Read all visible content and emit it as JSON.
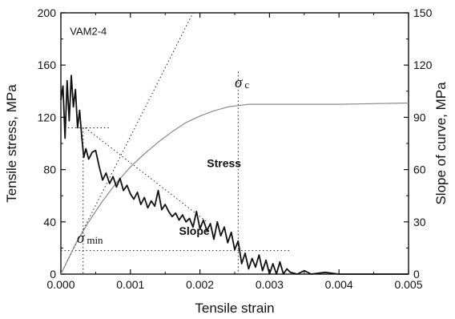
{
  "chart_data": {
    "type": "line",
    "sample_label": "VAM2-4",
    "xlabel": "Tensile strain",
    "ylabel_left": "Tensile stress, MPa",
    "ylabel_right": "Slope of curve, MPa",
    "xlim": [
      0.0,
      0.005
    ],
    "ylim_left": [
      0,
      200
    ],
    "ylim_right": [
      0,
      150
    ],
    "x_ticks": [
      "0.000",
      "0.001",
      "0.002",
      "0.003",
      "0.004",
      "0.005"
    ],
    "y_ticks_left": [
      "0",
      "40",
      "80",
      "120",
      "160",
      "200"
    ],
    "y_ticks_right": [
      "0",
      "30",
      "60",
      "90",
      "120",
      "150"
    ],
    "series": [
      {
        "name": "Stress",
        "axis": "left",
        "style": "solid-thin",
        "color": "#8a8a8a",
        "x": [
          0.0,
          0.0002,
          0.0004,
          0.0006,
          0.0008,
          0.001,
          0.0012,
          0.0014,
          0.0016,
          0.0018,
          0.002,
          0.0022,
          0.0024,
          0.00255,
          0.0027,
          0.003,
          0.0035,
          0.004,
          0.0045,
          0.005
        ],
        "y": [
          0,
          22,
          40,
          56,
          70,
          82,
          92,
          101,
          109,
          116,
          121,
          125,
          128,
          129,
          130,
          130,
          130,
          130,
          130.5,
          131
        ]
      },
      {
        "name": "Slope",
        "axis": "right",
        "style": "solid-thick",
        "color": "#111111",
        "x": [
          0.0,
          3e-05,
          6e-05,
          9e-05,
          0.00012,
          0.00015,
          0.00018,
          0.00021,
          0.00024,
          0.00027,
          0.0003,
          0.00033,
          0.00036,
          0.0004,
          0.00045,
          0.0005,
          0.00055,
          0.0006,
          0.00065,
          0.0007,
          0.00075,
          0.0008,
          0.00085,
          0.0009,
          0.00095,
          0.001,
          0.00105,
          0.0011,
          0.00115,
          0.0012,
          0.00125,
          0.0013,
          0.00135,
          0.0014,
          0.00145,
          0.0015,
          0.00155,
          0.0016,
          0.00165,
          0.0017,
          0.00175,
          0.0018,
          0.00185,
          0.0019,
          0.00195,
          0.002,
          0.00205,
          0.0021,
          0.00215,
          0.0022,
          0.00225,
          0.0023,
          0.00235,
          0.0024,
          0.00245,
          0.0025,
          0.00255,
          0.0026,
          0.00265,
          0.0027,
          0.00275,
          0.0028,
          0.00285,
          0.0029,
          0.00295,
          0.003,
          0.00305,
          0.0031,
          0.00315,
          0.0032,
          0.00325,
          0.0033,
          0.0034,
          0.0035,
          0.0036,
          0.0038,
          0.004,
          0.0042,
          0.0044,
          0.0046,
          0.0048,
          0.005
        ],
        "y": [
          100,
          108,
          78,
          111,
          88,
          114,
          96,
          106,
          84,
          94,
          79,
          67,
          72,
          66,
          70,
          71,
          62,
          54,
          58,
          52,
          56,
          50,
          55,
          48,
          51,
          46,
          43,
          47,
          40,
          44,
          38,
          42,
          39,
          48,
          37,
          40,
          36,
          33,
          35,
          31,
          34,
          30,
          32,
          27,
          36,
          26,
          31,
          25,
          29,
          20,
          30,
          22,
          27,
          18,
          24,
          14,
          19,
          6,
          12,
          3,
          9,
          4,
          11,
          2,
          8,
          0,
          6,
          -1,
          7,
          0,
          3,
          1,
          0,
          2,
          0,
          1,
          0,
          -1,
          0,
          0,
          0,
          0
        ]
      }
    ],
    "annotations": [
      {
        "text": "Stress",
        "x": 0.0021,
        "y_left": 82
      },
      {
        "text": "Slope",
        "x": 0.0017,
        "y_left": 30
      },
      {
        "symbol": "σ",
        "subscript": "c",
        "x": 0.0025,
        "y_left": 143
      },
      {
        "symbol": "σ",
        "subscript": "min",
        "x": 0.00023,
        "y_left": 24
      }
    ],
    "reference_lines": {
      "sigma_c_strain": 0.00255,
      "sigma_min_strain": 0.00032,
      "stress_min_level": 18,
      "slope_plateau_level_right": 84
    }
  }
}
